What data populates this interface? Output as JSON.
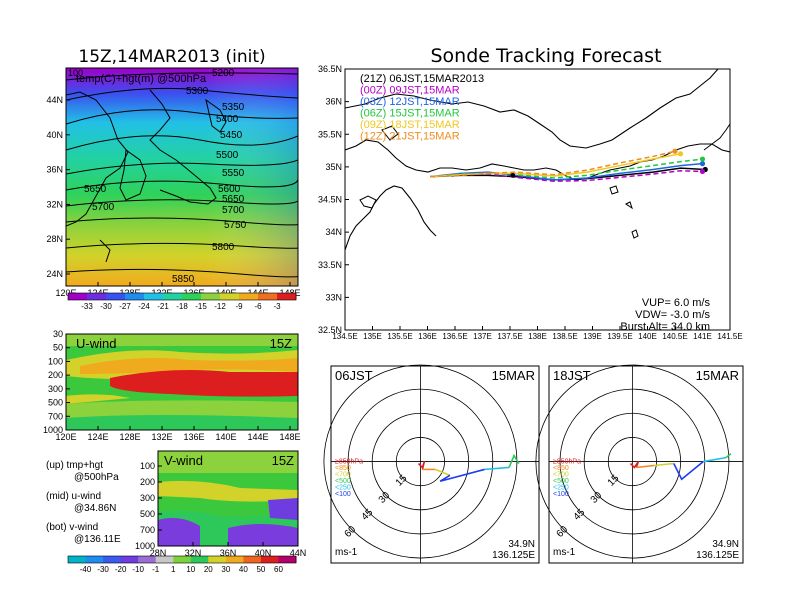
{
  "weather_map": {
    "title": "15Z,14MAR2013 (init)",
    "corner_label": "100",
    "overlay_label": "temp(C)+hgt(m) @500hPa",
    "x_ticks": [
      "120E",
      "124E",
      "128E",
      "132E",
      "136E",
      "140E",
      "144E",
      "148E"
    ],
    "y_ticks": [
      "44N",
      "40N",
      "36N",
      "32N",
      "28N",
      "24N"
    ],
    "contour_labels": [
      "5200",
      "5300",
      "5350",
      "5400",
      "5450",
      "5500",
      "5550",
      "5600",
      "5650",
      "5700",
      "5750",
      "5800",
      "5850",
      "5650",
      "5700"
    ],
    "colorbar_labels": [
      "-33",
      "-30",
      "-27",
      "-24",
      "-21",
      "-18",
      "-15",
      "-12",
      "-9",
      "-6",
      "-3"
    ],
    "colorbar_colors": [
      "#a000c8",
      "#6e2ce0",
      "#3a52f0",
      "#1f8cf0",
      "#22c0e6",
      "#22d2a0",
      "#2ed25a",
      "#8cd23c",
      "#d2d22a",
      "#f0aa1e",
      "#f06e1e",
      "#dc1e1e"
    ]
  },
  "uwind": {
    "title": "U-wind",
    "time": "15Z",
    "y_ticks": [
      "30",
      "50",
      "100",
      "200",
      "300",
      "500",
      "700",
      "1000"
    ],
    "x_ticks": [
      "120E",
      "124E",
      "128E",
      "132E",
      "136E",
      "140E",
      "144E",
      "148E"
    ]
  },
  "vwind": {
    "title": "V-wind",
    "time": "15Z",
    "y_ticks": [
      "100",
      "200",
      "300",
      "500",
      "700",
      "1000"
    ],
    "x_ticks": [
      "28N",
      "32N",
      "36N",
      "40N",
      "44N"
    ]
  },
  "side_legend": {
    "line1": "(up) tmp+hgt",
    "line2": "@500hPa",
    "line3": "(mid) u-wind",
    "line4": "@34.86N",
    "line5": "(bot) v-wind",
    "line6": "@136.11E"
  },
  "wind_colorbar": {
    "labels": [
      "-40",
      "-30",
      "-20",
      "-10",
      "-1",
      "1",
      "10",
      "20",
      "30",
      "40",
      "50",
      "60"
    ],
    "colors": [
      "#00b4c8",
      "#1e8cf0",
      "#3a5af0",
      "#6e3ce0",
      "#9a6ed2",
      "#c8c8c8",
      "#7cd23c",
      "#2ec85a",
      "#d2d22a",
      "#f0aa1e",
      "#f0641e",
      "#dc1e1e",
      "#b4006e"
    ]
  },
  "chart_data": [
    {
      "type": "line",
      "title": "Sonde Tracking Forecast",
      "xlim": [
        134.5,
        141.5
      ],
      "ylim": [
        32.5,
        36.5
      ],
      "x_ticks": [
        "134.5E",
        "135E",
        "135.5E",
        "136E",
        "136.5E",
        "137E",
        "137.5E",
        "138E",
        "138.5E",
        "139E",
        "139.5E",
        "140E",
        "140.5E",
        "141E",
        "141.5E"
      ],
      "y_ticks": [
        "36.5N",
        "36N",
        "35.5N",
        "35N",
        "34.5N",
        "34N",
        "33.5N",
        "33N",
        "32.5N"
      ],
      "series": [
        {
          "name": "(21Z) 06JST,15MAR2013",
          "color": "#000000",
          "dash": "",
          "x": [
            136.05,
            136.6,
            137.1,
            137.6,
            138.3,
            138.9,
            139.5,
            140.1,
            140.6,
            141.05
          ],
          "y": [
            34.85,
            34.87,
            34.87,
            34.85,
            34.8,
            34.82,
            34.87,
            34.92,
            34.98,
            34.96
          ]
        },
        {
          "name": "(00Z) 09JST,15MAR",
          "color": "#b400c8",
          "dash": "5,3",
          "x": [
            136.05,
            136.6,
            137.1,
            137.6,
            138.3,
            138.9,
            139.5,
            140.1,
            140.6,
            141.0
          ],
          "y": [
            34.85,
            34.88,
            34.89,
            34.84,
            34.78,
            34.79,
            34.84,
            34.89,
            34.94,
            34.93
          ]
        },
        {
          "name": "(03Z) 12JST,15MAR",
          "color": "#1e64e6",
          "dash": "",
          "x": [
            136.05,
            136.6,
            137.1,
            137.6,
            138.3,
            138.9,
            139.5,
            140.1,
            140.6,
            141.0
          ],
          "y": [
            34.85,
            34.9,
            34.92,
            34.87,
            34.8,
            34.83,
            34.9,
            34.96,
            35.02,
            35.05
          ]
        },
        {
          "name": "(06Z) 15JST,15MAR",
          "color": "#22c83c",
          "dash": "5,3",
          "x": [
            136.05,
            136.6,
            137.1,
            137.6,
            138.3,
            138.9,
            139.5,
            140.1,
            140.6,
            141.0
          ],
          "y": [
            34.85,
            34.89,
            34.9,
            34.88,
            34.83,
            34.87,
            34.95,
            35.02,
            35.08,
            35.12
          ]
        },
        {
          "name": "(09Z) 18JST,15MAR",
          "color": "#f0c81e",
          "dash": "",
          "x": [
            136.05,
            136.6,
            137.1,
            137.6,
            138.3,
            138.9,
            139.5,
            140.1,
            140.6
          ],
          "y": [
            34.85,
            34.88,
            34.9,
            34.9,
            34.86,
            34.92,
            35.02,
            35.12,
            35.2
          ]
        },
        {
          "name": "(12Z) 21JST,15MAR",
          "color": "#f08c1e",
          "dash": "5,3",
          "x": [
            136.05,
            136.6,
            137.1,
            137.6,
            138.3,
            138.9,
            139.5,
            140.1,
            140.5
          ],
          "y": [
            34.85,
            34.87,
            34.9,
            34.92,
            34.88,
            34.95,
            35.06,
            35.16,
            35.24
          ]
        }
      ],
      "annotations": [
        "VUP= 6.0 m/s",
        "VDW= -3.0 m/s",
        "Burst Alt= 34.0 km"
      ]
    }
  ],
  "hodo_left": {
    "time": "06JST",
    "date": "15MAR",
    "unit": "ms-1",
    "lat": "34.9N",
    "lon": "136.125E",
    "ring_labels": [
      "15",
      "30",
      "45",
      "60"
    ],
    "level_legend": [
      {
        "label": "≥850hPa",
        "color": "#dc1e1e"
      },
      {
        "label": "<850",
        "color": "#f08c1e"
      },
      {
        "label": "<700",
        "color": "#d2d22a"
      },
      {
        "label": "<500",
        "color": "#2ec85a"
      },
      {
        "label": "<250",
        "color": "#22c0e6"
      },
      {
        "label": "<100",
        "color": "#1e3cf0"
      }
    ]
  },
  "hodo_right": {
    "time": "18JST",
    "date": "15MAR",
    "unit": "ms-1",
    "lat": "34.9N",
    "lon": "136.125E",
    "ring_labels": [
      "15",
      "30",
      "45",
      "60"
    ],
    "level_legend": [
      {
        "label": "≥850hPa",
        "color": "#dc1e1e"
      },
      {
        "label": "<850",
        "color": "#f08c1e"
      },
      {
        "label": "<700",
        "color": "#d2d22a"
      },
      {
        "label": "<500",
        "color": "#2ec85a"
      },
      {
        "label": "<250",
        "color": "#22c0e6"
      },
      {
        "label": "<100",
        "color": "#1e3cf0"
      }
    ]
  }
}
